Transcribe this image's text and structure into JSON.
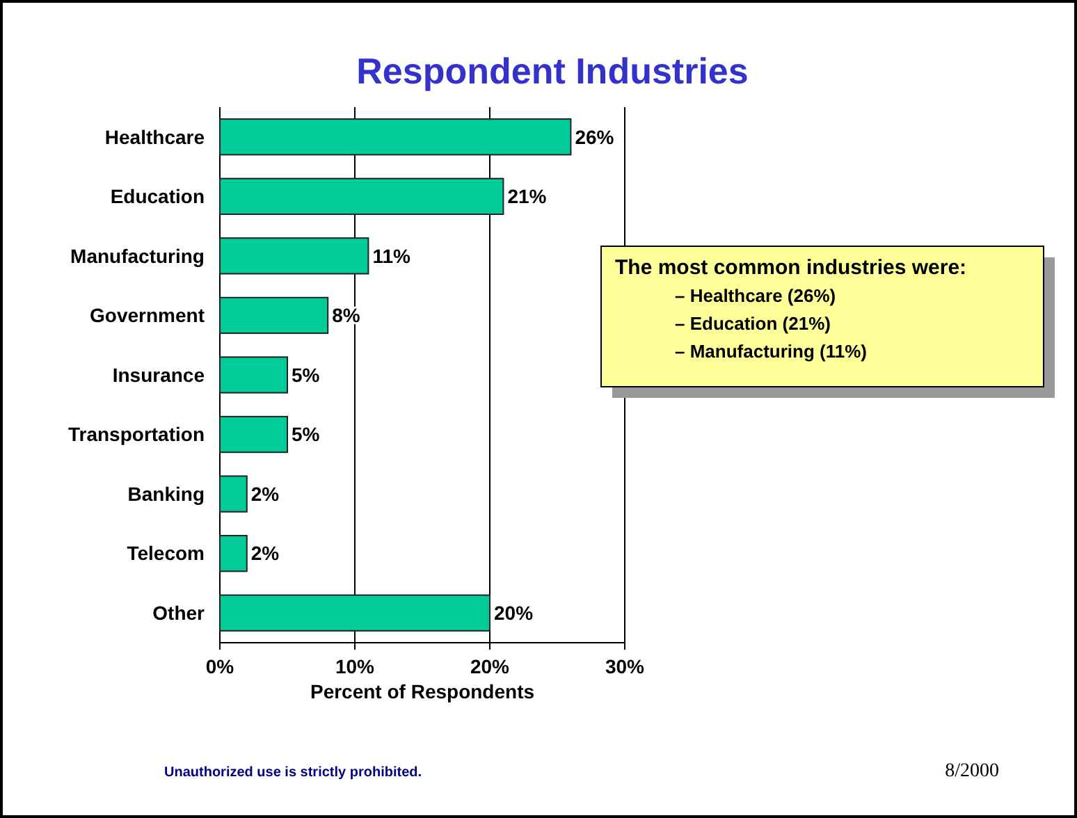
{
  "chart_data": {
    "type": "bar",
    "orientation": "horizontal",
    "title": "Respondent Industries",
    "xlabel": "Percent of Respondents",
    "categories": [
      "Healthcare",
      "Education",
      "Manufacturing",
      "Government",
      "Insurance",
      "Transportation",
      "Banking",
      "Telecom",
      "Other"
    ],
    "values": [
      26,
      21,
      11,
      8,
      5,
      5,
      2,
      2,
      20
    ],
    "value_labels": [
      "26%",
      "21%",
      "11%",
      "8%",
      "5%",
      "5%",
      "2%",
      "2%",
      "20%"
    ],
    "color": "#00cc99",
    "xlim": [
      0,
      30
    ],
    "xticks": [
      {
        "value": 0,
        "label": "0%"
      },
      {
        "value": 10,
        "label": "10%"
      },
      {
        "value": 20,
        "label": "20%"
      },
      {
        "value": 30,
        "label": "30%"
      }
    ],
    "grid": "x",
    "annotations": [
      "The most common industries were:",
      "– Healthcare (26%)",
      "– Education (21%)",
      "– Manufacturing (11%)",
      "Unauthorized use is strictly prohibited.",
      "8/2000"
    ]
  }
}
